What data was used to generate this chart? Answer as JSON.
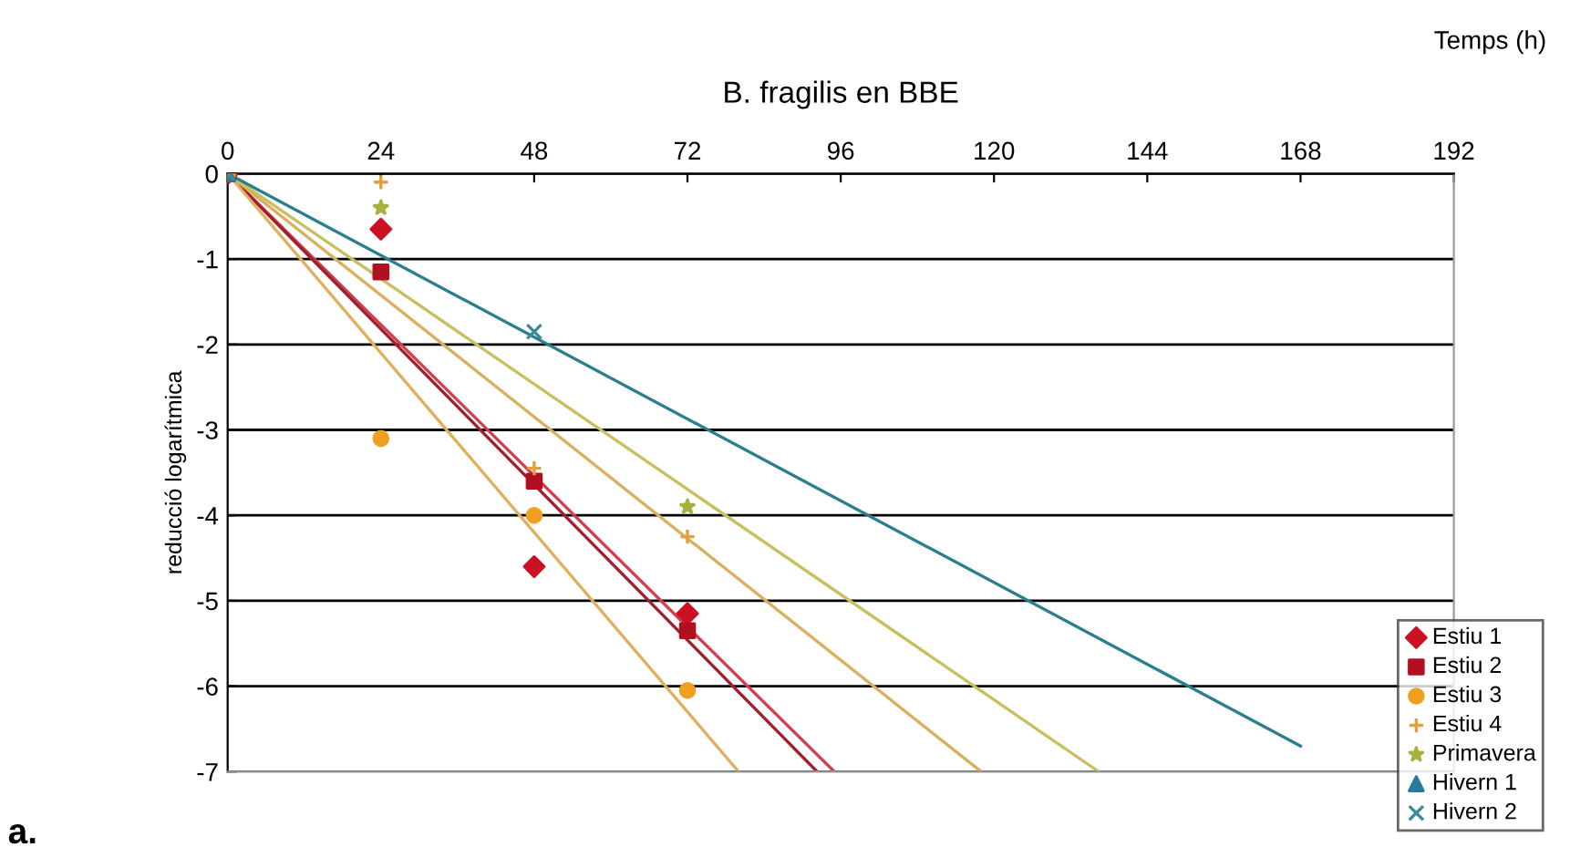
{
  "chart_data": {
    "type": "scatter",
    "title": "B. fragilis en BBE",
    "xlabel": "Temps (h)",
    "ylabel": "reducció logarítmica",
    "annotations": [
      "a."
    ],
    "xlim": [
      0,
      192
    ],
    "xticks": [
      0,
      24,
      48,
      72,
      96,
      120,
      144,
      168,
      192
    ],
    "ylim": [
      -7,
      0
    ],
    "yticks": [
      0,
      -1,
      -2,
      -3,
      -4,
      -5,
      -6,
      -7
    ],
    "grid": "y",
    "legend": "bottom right",
    "series": [
      {
        "name": "Estiu 1",
        "marker": "diamond",
        "color": "#cc1122",
        "x": [
          0,
          24,
          48,
          72
        ],
        "values": [
          0,
          -0.65,
          -4.6,
          -5.15
        ]
      },
      {
        "name": "Estiu 2",
        "marker": "square",
        "color": "#b01020",
        "x": [
          0,
          24,
          48,
          72
        ],
        "values": [
          0,
          -1.15,
          -3.6,
          -5.35
        ]
      },
      {
        "name": "Estiu 3",
        "marker": "circle",
        "color": "#f0a020",
        "x": [
          0,
          24,
          48,
          72
        ],
        "values": [
          0,
          -3.1,
          -4.0,
          -6.05
        ]
      },
      {
        "name": "Estiu 4",
        "marker": "plus",
        "color": "#e0a040",
        "x": [
          0,
          24,
          48,
          72
        ],
        "values": [
          0,
          -0.1,
          -3.45,
          -4.25
        ]
      },
      {
        "name": "Primavera",
        "marker": "star",
        "color": "#a8b040",
        "x": [
          0,
          24,
          72
        ],
        "values": [
          0,
          -0.4,
          -3.9
        ]
      },
      {
        "name": "Hivern 1",
        "marker": "triangle",
        "color": "#2a7a9a",
        "x": [
          0
        ],
        "values": [
          0
        ]
      },
      {
        "name": "Hivern 2",
        "marker": "cross",
        "color": "#3a8a9a",
        "x": [
          0,
          48
        ],
        "values": [
          0,
          -1.85
        ]
      },
      {
        "type": "line",
        "color": "#d04050",
        "x": [
          0,
          95
        ],
        "values": [
          0,
          -7
        ]
      },
      {
        "type": "line",
        "color": "#a02030",
        "x": [
          0,
          92.3
        ],
        "values": [
          0,
          -7
        ]
      },
      {
        "type": "line",
        "color": "#e0b060",
        "x": [
          0,
          80
        ],
        "values": [
          0,
          -7
        ]
      },
      {
        "type": "line",
        "color": "#d8b060",
        "x": [
          0,
          118
        ],
        "values": [
          0,
          -7
        ]
      },
      {
        "type": "line",
        "color": "#c8c060",
        "x": [
          0,
          136.4
        ],
        "values": [
          0,
          -7
        ]
      },
      {
        "type": "line",
        "color": "#2a7f8f",
        "x": [
          0,
          168
        ],
        "values": [
          0,
          -6.7
        ]
      }
    ]
  }
}
